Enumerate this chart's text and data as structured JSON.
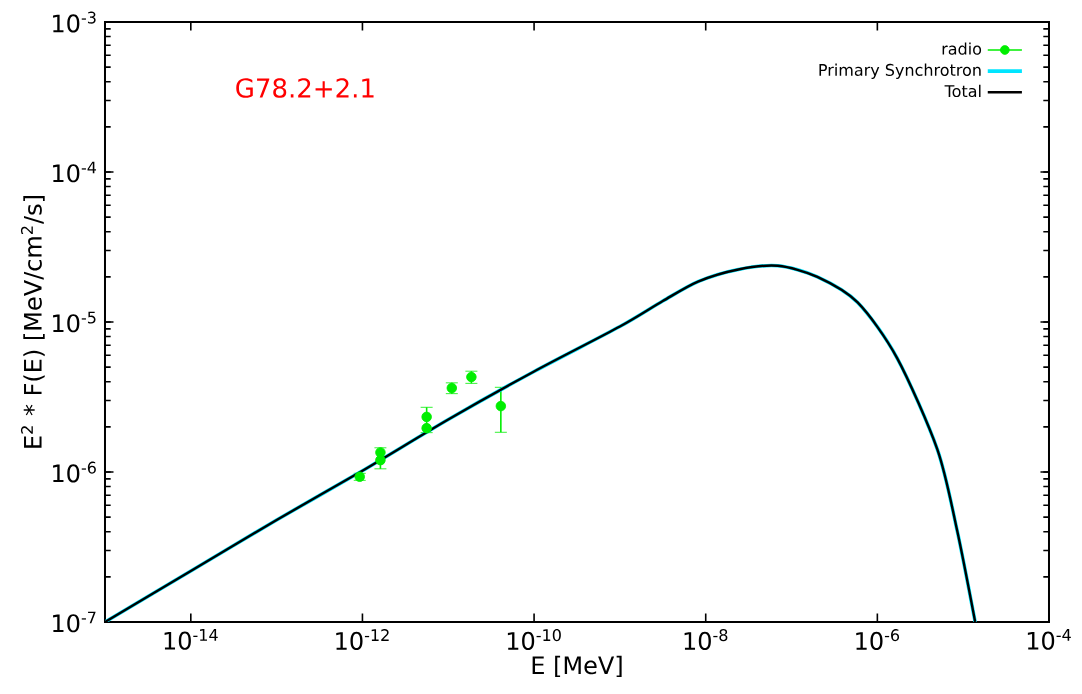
{
  "chart_data": {
    "type": "line",
    "xlabel": "E [MeV]",
    "ylabel": "E$^{2}$ * F(E) [MeV/cm$^{2}$/s]",
    "log": "xy",
    "grid": false,
    "legend": "top right",
    "xlim": [
      1e-15,
      0.0001
    ],
    "ylim": [
      1e-07,
      0.001
    ],
    "xticks": [
      {
        "value": 1e-14,
        "label": "10$^{-14}$"
      },
      {
        "value": 1e-12,
        "label": "10$^{-12}$"
      },
      {
        "value": 1e-10,
        "label": "10$^{-10}$"
      },
      {
        "value": 1e-08,
        "label": "10$^{-8}$"
      },
      {
        "value": 1e-06,
        "label": "10$^{-6}$"
      },
      {
        "value": 0.0001,
        "label": "10$^{-4}$"
      }
    ],
    "yticks": [
      {
        "value": 1e-07,
        "label": "10$^{-7}$"
      },
      {
        "value": 1e-06,
        "label": "10$^{-6}$"
      },
      {
        "value": 1e-05,
        "label": "10$^{-5}$"
      },
      {
        "value": 0.0001,
        "label": "10$^{-4}$"
      },
      {
        "value": 0.001,
        "label": "10$^{-3}$"
      }
    ],
    "annotations": [
      "G78.2+2.1"
    ],
    "series": [
      {
        "name": "radio",
        "type": "scatter",
        "marker": "circle",
        "color": "#00ee00",
        "x": [
          9.3e-13,
          1.62e-12,
          1.62e-12,
          5.6e-12,
          5.6e-12,
          1.1e-11,
          1.86e-11,
          4.1e-11
        ],
        "values": [
          9.3e-07,
          1.35e-06,
          1.2e-06,
          2.33e-06,
          1.96e-06,
          3.63e-06,
          4.3e-06,
          2.75e-06
        ],
        "errors": [
          5e-08,
          null,
          [
            1.05e-06,
            1.45e-06
          ],
          null,
          [
            1.83e-06,
            2.7e-06
          ],
          3e-07,
          4e-07,
          [
            1.84e-06,
            3.67e-06
          ]
        ]
      },
      {
        "name": "Primary Synchrotron",
        "type": "line",
        "marker": "none",
        "color": "#00e5ff",
        "x": [
          1e-15,
          1e-14,
          1e-13,
          1e-12,
          1e-11,
          1e-10,
          1e-09,
          3.16e-09,
          8.13e-09,
          2.4e-08,
          6.92e-08,
          2e-07,
          5.89e-07,
          1.7e-06,
          5.01e-06,
          8.51e-06,
          1.38e-05
        ],
        "values": [
          1e-07,
          2.19e-07,
          4.79e-07,
          1.02e-06,
          2.24e-06,
          4.68e-06,
          9.33e-06,
          1.38e-05,
          1.86e-05,
          2.24e-05,
          2.37e-05,
          2e-05,
          1.35e-05,
          5.75e-06,
          1.41e-06,
          4.07e-07,
          1e-07
        ]
      },
      {
        "name": "Total",
        "type": "line",
        "marker": "none",
        "color": "#000000",
        "x": [
          1e-15,
          1e-14,
          1e-13,
          1e-12,
          1e-11,
          1e-10,
          1e-09,
          3.16e-09,
          8.13e-09,
          2.4e-08,
          6.92e-08,
          2e-07,
          5.89e-07,
          1.7e-06,
          5.01e-06,
          8.51e-06,
          1.38e-05
        ],
        "values": [
          1e-07,
          2.19e-07,
          4.79e-07,
          1.02e-06,
          2.24e-06,
          4.68e-06,
          9.33e-06,
          1.38e-05,
          1.86e-05,
          2.24e-05,
          2.37e-05,
          2e-05,
          1.35e-05,
          5.75e-06,
          1.41e-06,
          4.07e-07,
          1e-07
        ]
      }
    ]
  }
}
